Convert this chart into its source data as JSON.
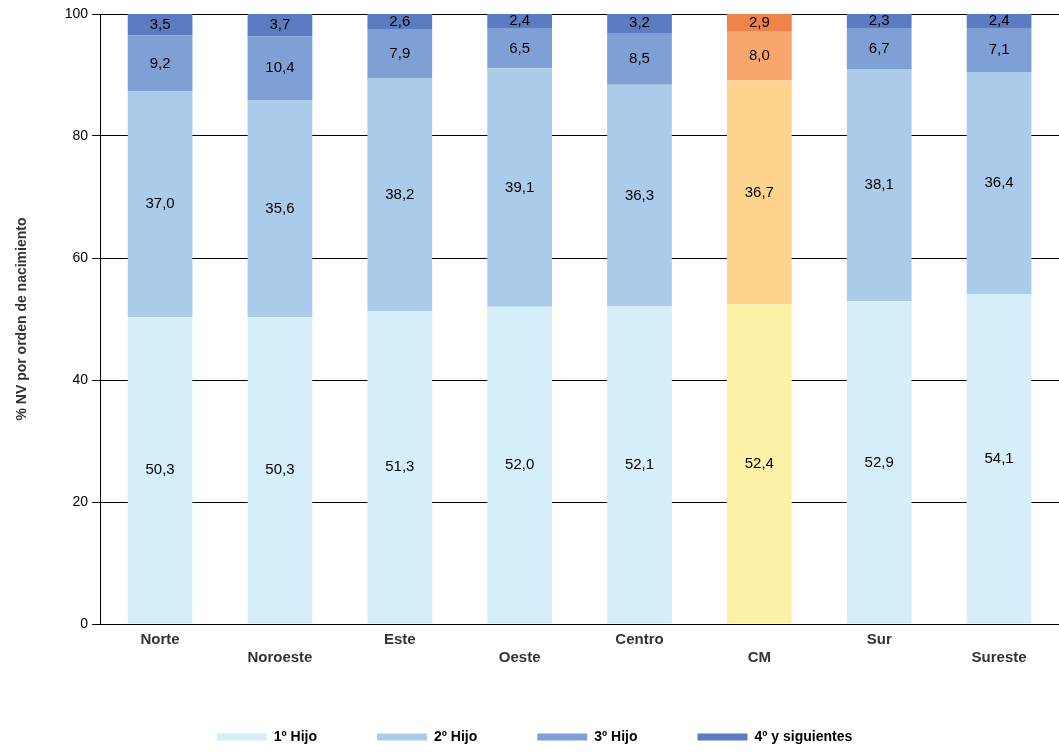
{
  "chart_data": {
    "type": "bar",
    "stacked": true,
    "ylabel": "% NV por orden de nacimiento",
    "categories": [
      "Norte",
      "Noroeste",
      "Este",
      "Oeste",
      "Centro",
      "CM",
      "Sur",
      "Sureste"
    ],
    "ylim": [
      0,
      100
    ],
    "yticks": [
      0,
      20,
      40,
      60,
      80,
      100
    ],
    "grid": "y",
    "legend": "bottom",
    "series": [
      {
        "name": "1º Hijo",
        "color": "#d4eefa",
        "colors": [
          "#d4eefa",
          "#d4eefa",
          "#d4eefa",
          "#d4eefa",
          "#d4eefa",
          "#fff2a8",
          "#d4eefa",
          "#d4eefa"
        ],
        "values": [
          50.3,
          50.3,
          51.3,
          52.0,
          52.1,
          52.4,
          52.9,
          54.1
        ],
        "value_labels": [
          "50,3",
          "50,3",
          "51,3",
          "52,0",
          "52,1",
          "52,4",
          "52,9",
          "54,1"
        ]
      },
      {
        "name": "2º Hijo",
        "color": "#abcbea",
        "colors": [
          "#abcbea",
          "#abcbea",
          "#abcbea",
          "#abcbea",
          "#abcbea",
          "#fdd38e",
          "#abcbea",
          "#abcbea"
        ],
        "values": [
          37.0,
          35.6,
          38.2,
          39.1,
          36.3,
          36.7,
          38.1,
          36.4
        ],
        "value_labels": [
          "37,0",
          "35,6",
          "38,2",
          "39,1",
          "36,3",
          "36,7",
          "38,1",
          "36,4"
        ]
      },
      {
        "name": "3º Hijo",
        "color": "#7fa0d4",
        "colors": [
          "#7fa0d4",
          "#7fa0d4",
          "#7fa0d4",
          "#7fa0d4",
          "#7fa0d4",
          "#f8a66e",
          "#7fa0d4",
          "#7fa0d4"
        ],
        "values": [
          9.2,
          10.4,
          7.9,
          6.5,
          8.5,
          8.0,
          6.7,
          7.1
        ],
        "value_labels": [
          "9,2",
          "10,4",
          "7,9",
          "6,5",
          "8,5",
          "8,0",
          "6,7",
          "7,1"
        ]
      },
      {
        "name": "4º y siguientes",
        "color": "#5b7cc0",
        "colors": [
          "#5b7cc0",
          "#5b7cc0",
          "#5b7cc0",
          "#5b7cc0",
          "#5b7cc0",
          "#f0834a",
          "#5b7cc0",
          "#5b7cc0"
        ],
        "values": [
          3.5,
          3.7,
          2.6,
          2.4,
          3.2,
          2.9,
          2.3,
          2.4
        ],
        "value_labels": [
          "3,5",
          "3,7",
          "2,6",
          "2,4",
          "3,2",
          "2,9",
          "2,3",
          "2,4"
        ]
      }
    ]
  }
}
